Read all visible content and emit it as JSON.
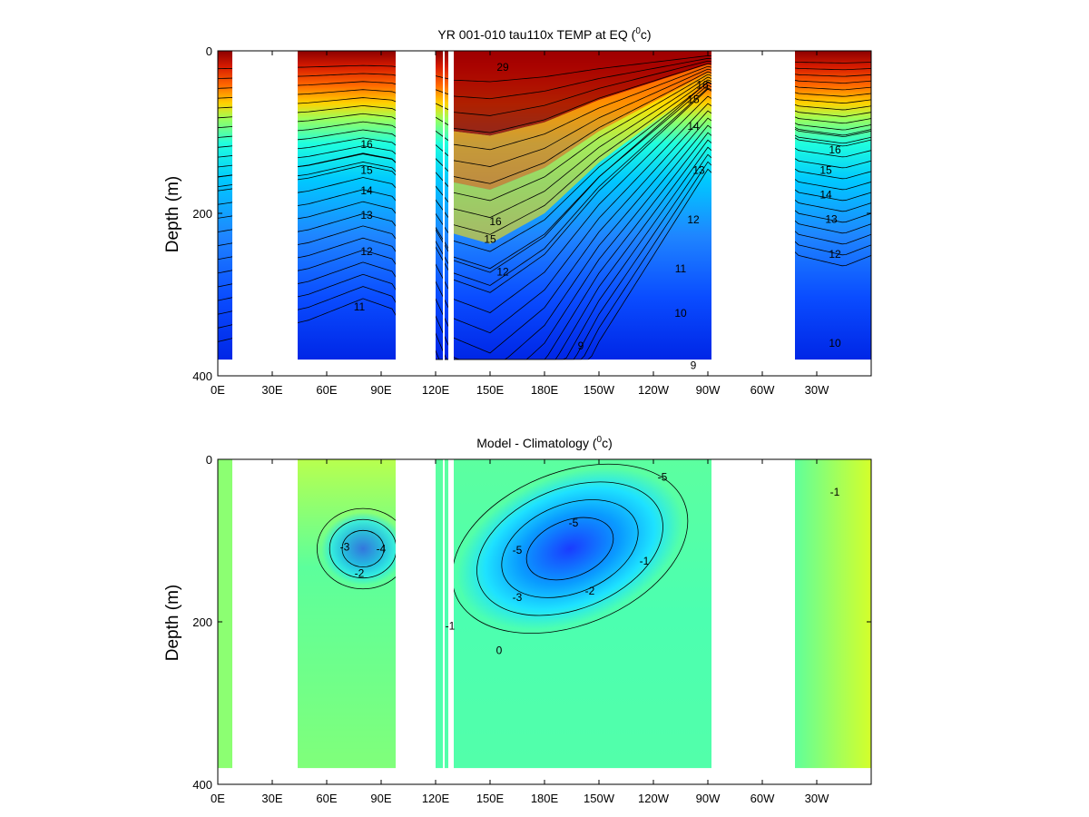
{
  "chart_data": [
    {
      "type": "heatmap",
      "title": "YR 001-010 tau110x TEMP at EQ (",
      "title_sup": "0",
      "title_tail": "c)",
      "ylabel": "Depth (m)",
      "xticks": [
        "0E",
        "30E",
        "60E",
        "90E",
        "120E",
        "150E",
        "180E",
        "150W",
        "120W",
        "90W",
        "60W",
        "30W"
      ],
      "xlim_deg_east": [
        0,
        360
      ],
      "yticks": [
        "0",
        "200",
        "400"
      ],
      "ylim": [
        0,
        400
      ],
      "y_reversed": true,
      "max_depth_data": 380,
      "colormap": "jet",
      "color_range": [
        8,
        30
      ],
      "ocean_segments_deg_east": [
        [
          0,
          8
        ],
        [
          44,
          98
        ],
        [
          120,
          124
        ],
        [
          125,
          127
        ],
        [
          130,
          272
        ],
        [
          318,
          360
        ]
      ],
      "thermocline_depth": [
        {
          "lon": 0,
          "depth": 110
        },
        {
          "lon": 50,
          "depth": 100
        },
        {
          "lon": 80,
          "depth": 90
        },
        {
          "lon": 97,
          "depth": 95
        },
        {
          "lon": 130,
          "depth": 180
        },
        {
          "lon": 150,
          "depth": 190
        },
        {
          "lon": 180,
          "depth": 160
        },
        {
          "lon": 210,
          "depth": 110
        },
        {
          "lon": 240,
          "depth": 70
        },
        {
          "lon": 270,
          "depth": 30
        },
        {
          "lon": 320,
          "depth": 70
        },
        {
          "lon": 345,
          "depth": 75
        },
        {
          "lon": 360,
          "depth": 70
        }
      ],
      "contour_labels": [
        {
          "text": "11",
          "lon": 78,
          "depth": 315
        },
        {
          "text": "12",
          "lon": 82,
          "depth": 247
        },
        {
          "text": "13",
          "lon": 82,
          "depth": 202
        },
        {
          "text": "14",
          "lon": 82,
          "depth": 172
        },
        {
          "text": "15",
          "lon": 82,
          "depth": 147
        },
        {
          "text": "16",
          "lon": 82,
          "depth": 115
        },
        {
          "text": "10",
          "lon": 255,
          "depth": 323
        },
        {
          "text": "11",
          "lon": 255,
          "depth": 268
        },
        {
          "text": "12",
          "lon": 262,
          "depth": 208
        },
        {
          "text": "13",
          "lon": 265,
          "depth": 147
        },
        {
          "text": "14",
          "lon": 262,
          "depth": 93
        },
        {
          "text": "15",
          "lon": 262,
          "depth": 60
        },
        {
          "text": "16",
          "lon": 267,
          "depth": 42
        },
        {
          "text": "9",
          "lon": 200,
          "depth": 363
        },
        {
          "text": "9",
          "lon": 262,
          "depth": 387
        },
        {
          "text": "29",
          "lon": 157,
          "depth": 20
        },
        {
          "text": "12",
          "lon": 157,
          "depth": 272
        },
        {
          "text": "15",
          "lon": 150,
          "depth": 232
        },
        {
          "text": "16",
          "lon": 153,
          "depth": 210
        },
        {
          "text": "10",
          "lon": 340,
          "depth": 360
        },
        {
          "text": "12",
          "lon": 340,
          "depth": 250
        },
        {
          "text": "13",
          "lon": 338,
          "depth": 207
        },
        {
          "text": "14",
          "lon": 335,
          "depth": 177
        },
        {
          "text": "15",
          "lon": 335,
          "depth": 147
        },
        {
          "text": "16",
          "lon": 340,
          "depth": 122
        }
      ]
    },
    {
      "type": "heatmap",
      "title": "Model - Climatology (",
      "title_sup": "0",
      "title_tail": "c)",
      "ylabel": "Depth (m)",
      "xticks": [
        "0E",
        "30E",
        "60E",
        "90E",
        "120E",
        "150E",
        "180E",
        "150W",
        "120W",
        "90W",
        "60W",
        "30W"
      ],
      "xlim_deg_east": [
        0,
        360
      ],
      "yticks": [
        "0",
        "200",
        "400"
      ],
      "ylim": [
        0,
        400
      ],
      "y_reversed": true,
      "max_depth_data": 380,
      "colormap": "jet",
      "color_range": [
        -8,
        8
      ],
      "ocean_segments_deg_east": [
        [
          0,
          8
        ],
        [
          44,
          98
        ],
        [
          120,
          124
        ],
        [
          125,
          127
        ],
        [
          130,
          272
        ],
        [
          318,
          360
        ]
      ],
      "anomaly_core": {
        "value": -5,
        "lon": 194,
        "depth": 110
      },
      "anomaly_core_west": {
        "value": -4,
        "lon": 80,
        "depth": 110
      },
      "contour_labels": [
        {
          "text": "-5",
          "lon": 196,
          "depth": 78
        },
        {
          "text": "-5",
          "lon": 165,
          "depth": 112
        },
        {
          "text": "-3",
          "lon": 165,
          "depth": 170
        },
        {
          "text": "-2",
          "lon": 205,
          "depth": 162
        },
        {
          "text": "-2",
          "lon": 78,
          "depth": 140
        },
        {
          "text": "-3",
          "lon": 70,
          "depth": 108
        },
        {
          "text": "-4",
          "lon": 90,
          "depth": 110
        },
        {
          "text": "-5",
          "lon": 245,
          "depth": 22
        },
        {
          "text": "-1",
          "lon": 340,
          "depth": 40
        },
        {
          "text": "0",
          "lon": 155,
          "depth": 235
        },
        {
          "text": "-1",
          "lon": 235,
          "depth": 125
        },
        {
          "text": "-1",
          "lon": 128,
          "depth": 205
        }
      ]
    }
  ]
}
